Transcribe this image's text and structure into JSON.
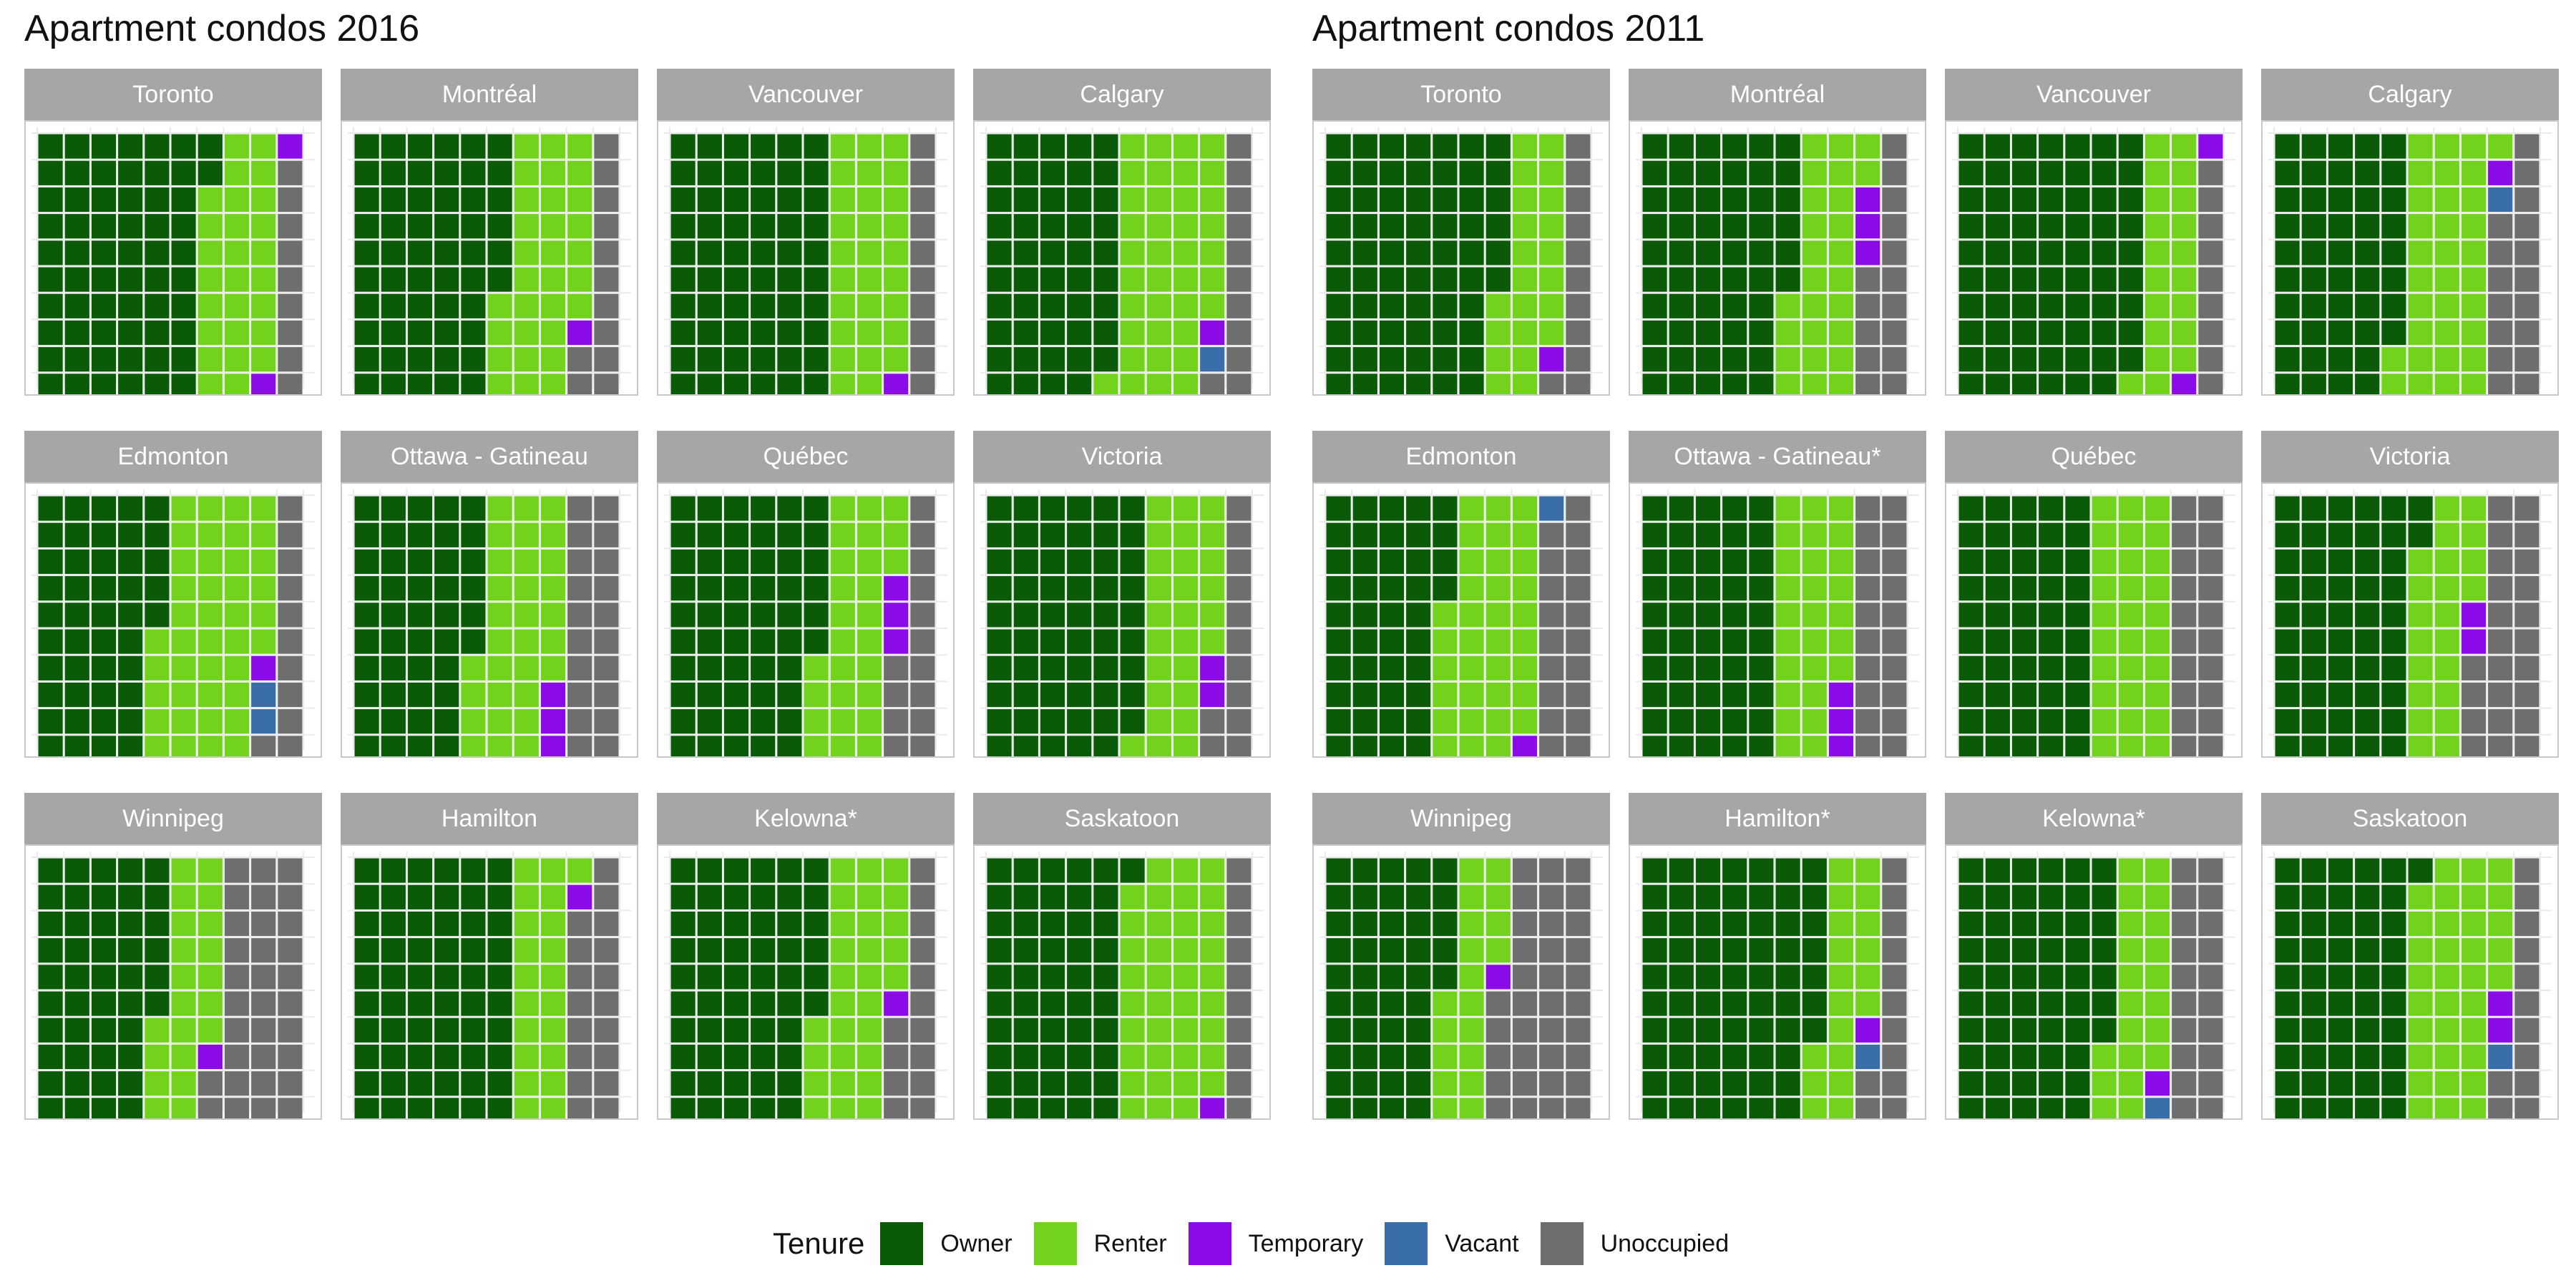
{
  "legend": {
    "title": "Tenure",
    "items": [
      {
        "key": "owner",
        "label": "Owner",
        "color": "#0b5a08"
      },
      {
        "key": "renter",
        "label": "Renter",
        "color": "#73d31c"
      },
      {
        "key": "temporary",
        "label": "Temporary",
        "color": "#8a0ae8"
      },
      {
        "key": "vacant",
        "label": "Vacant",
        "color": "#3a6ea8"
      },
      {
        "key": "unoccupied",
        "label": "Unoccupied",
        "color": "#6e6e6e"
      }
    ]
  },
  "chart_data": [
    {
      "type": "waffle",
      "title": "Apartment condos 2016",
      "grid": {
        "columns": 10,
        "rows": 10,
        "fill_order": "column-wise, top to bottom, left to right"
      },
      "units": "squares out of 100",
      "facets": [
        {
          "name": "Toronto",
          "owner": 62,
          "renter": 27,
          "temporary": 2,
          "vacant": 0,
          "unoccupied": 9
        },
        {
          "name": "Montréal",
          "owner": 56,
          "renter": 31,
          "temporary": 1,
          "vacant": 0,
          "unoccupied": 12
        },
        {
          "name": "Vancouver",
          "owner": 60,
          "renter": 29,
          "temporary": 1,
          "vacant": 0,
          "unoccupied": 10
        },
        {
          "name": "Calgary",
          "owner": 49,
          "renter": 38,
          "temporary": 1,
          "vacant": 1,
          "unoccupied": 11
        },
        {
          "name": "Edmonton",
          "owner": 45,
          "renter": 41,
          "temporary": 1,
          "vacant": 2,
          "unoccupied": 11
        },
        {
          "name": "Ottawa - Gatineau",
          "owner": 46,
          "renter": 31,
          "temporary": 3,
          "vacant": 0,
          "unoccupied": 20
        },
        {
          "name": "Québec",
          "owner": 56,
          "renter": 27,
          "temporary": 3,
          "vacant": 0,
          "unoccupied": 14
        },
        {
          "name": "Victoria",
          "owner": 59,
          "renter": 27,
          "temporary": 2,
          "vacant": 0,
          "unoccupied": 12
        },
        {
          "name": "Winnipeg",
          "owner": 46,
          "renter": 21,
          "temporary": 1,
          "vacant": 0,
          "unoccupied": 32
        },
        {
          "name": "Hamilton",
          "owner": 60,
          "renter": 21,
          "temporary": 1,
          "vacant": 0,
          "unoccupied": 18
        },
        {
          "name": "Kelowna*",
          "owner": 56,
          "renter": 29,
          "temporary": 1,
          "vacant": 0,
          "unoccupied": 14
        },
        {
          "name": "Saskatoon",
          "owner": 51,
          "renter": 38,
          "temporary": 1,
          "vacant": 0,
          "unoccupied": 10
        }
      ]
    },
    {
      "type": "waffle",
      "title": "Apartment condos 2011",
      "grid": {
        "columns": 10,
        "rows": 10,
        "fill_order": "column-wise, top to bottom, left to right"
      },
      "units": "squares out of 100",
      "facets": [
        {
          "name": "Toronto",
          "owner": 66,
          "renter": 22,
          "temporary": 1,
          "vacant": 0,
          "unoccupied": 11
        },
        {
          "name": "Montréal",
          "owner": 56,
          "renter": 26,
          "temporary": 3,
          "vacant": 0,
          "unoccupied": 15
        },
        {
          "name": "Vancouver",
          "owner": 69,
          "renter": 20,
          "temporary": 2,
          "vacant": 0,
          "unoccupied": 9
        },
        {
          "name": "Calgary",
          "owner": 48,
          "renter": 33,
          "temporary": 1,
          "vacant": 1,
          "unoccupied": 17
        },
        {
          "name": "Edmonton",
          "owner": 44,
          "renter": 35,
          "temporary": 1,
          "vacant": 1,
          "unoccupied": 19
        },
        {
          "name": "Ottawa - Gatineau*",
          "owner": 50,
          "renter": 27,
          "temporary": 3,
          "vacant": 0,
          "unoccupied": 20
        },
        {
          "name": "Québec",
          "owner": 50,
          "renter": 30,
          "temporary": 0,
          "vacant": 0,
          "unoccupied": 20
        },
        {
          "name": "Victoria",
          "owner": 52,
          "renter": 22,
          "temporary": 2,
          "vacant": 0,
          "unoccupied": 24
        },
        {
          "name": "Winnipeg",
          "owner": 45,
          "renter": 19,
          "temporary": 1,
          "vacant": 0,
          "unoccupied": 35
        },
        {
          "name": "Hamilton*",
          "owner": 67,
          "renter": 19,
          "temporary": 1,
          "vacant": 1,
          "unoccupied": 12
        },
        {
          "name": "Kelowna*",
          "owner": 57,
          "renter": 21,
          "temporary": 1,
          "vacant": 1,
          "unoccupied": 20
        },
        {
          "name": "Saskatoon",
          "owner": 51,
          "renter": 34,
          "temporary": 2,
          "vacant": 1,
          "unoccupied": 12
        }
      ]
    }
  ]
}
